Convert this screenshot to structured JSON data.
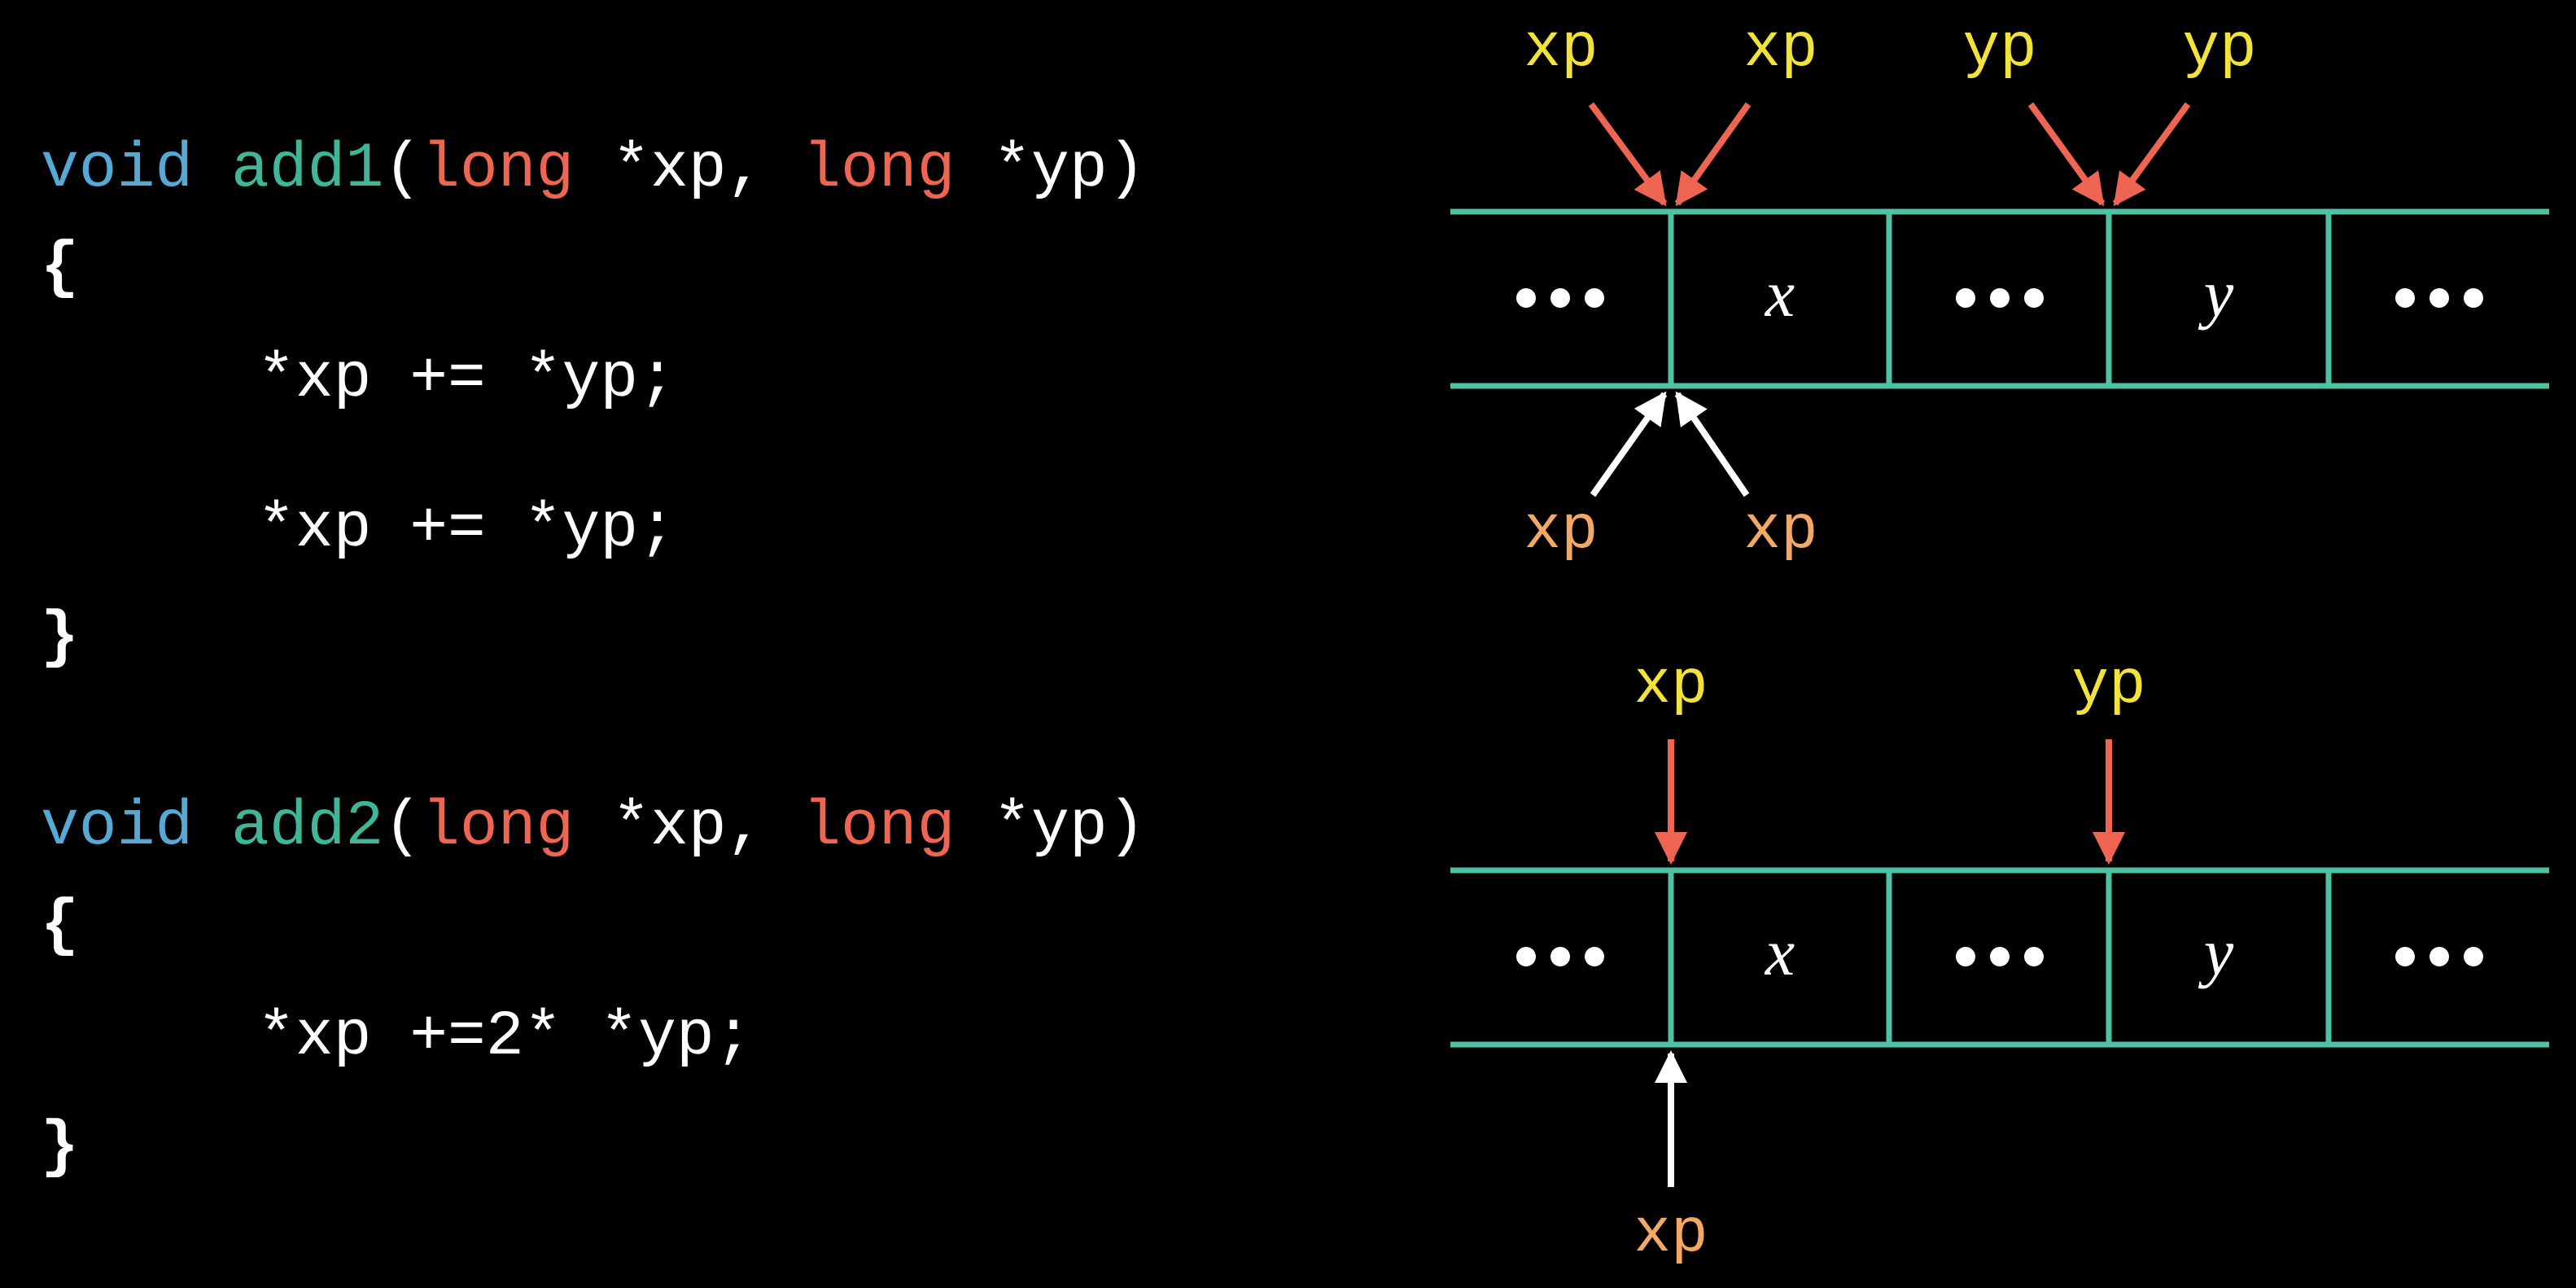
{
  "code": {
    "add1": {
      "keyword_void": "void",
      "function_name": "add1",
      "open_paren": "(",
      "type1": "long",
      "param1": " *xp, ",
      "type2": "long",
      "param2": " *yp)",
      "open_brace": "{",
      "body_lines": [
        "*xp += *yp;",
        "*xp += *yp;"
      ],
      "close_brace": "}"
    },
    "add2": {
      "keyword_void": "void",
      "function_name": "add2",
      "open_paren": "(",
      "type1": "long",
      "param1": " *xp, ",
      "type2": "long",
      "param2": " *yp)",
      "open_brace": "{",
      "body_lines": [
        "*xp +=2* *yp;"
      ],
      "close_brace": "}"
    }
  },
  "diagram": {
    "colors": {
      "memory_line": "#4fc2a4",
      "pointer_red": "#ee6651",
      "pointer_white": "#ffffff",
      "label_yellow": "#f2e23a",
      "label_orange": "#f3a866",
      "cell_text": "#ffffff",
      "background": "#000000"
    },
    "top": {
      "cells": [
        "ellipsis",
        "x",
        "ellipsis",
        "y",
        "ellipsis"
      ],
      "labels_above": [
        "xp",
        "xp",
        "yp",
        "yp"
      ],
      "labels_below": [
        "xp",
        "xp"
      ]
    },
    "bottom": {
      "cells": [
        "ellipsis",
        "x",
        "ellipsis",
        "y",
        "ellipsis"
      ],
      "labels_above": [
        "xp",
        "yp"
      ],
      "labels_below": [
        "xp"
      ]
    },
    "cell_variables": {
      "x": "x",
      "y": "y"
    }
  }
}
